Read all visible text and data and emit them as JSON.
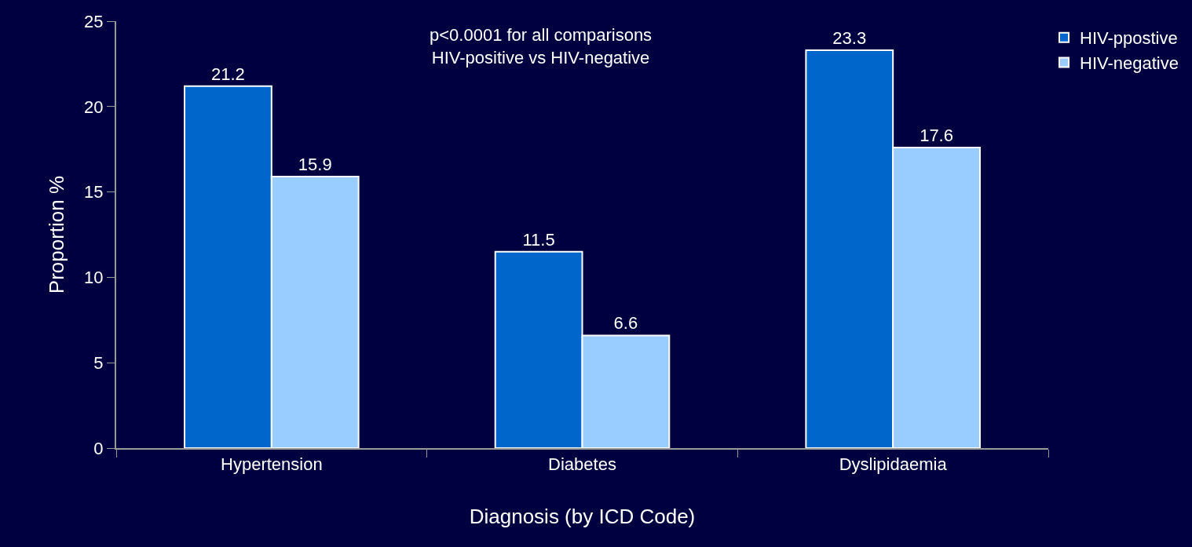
{
  "chart_data": {
    "type": "bar",
    "xlabel": "Diagnosis (by ICD Code)",
    "ylabel": "Proportion %",
    "categories": [
      "Hypertension",
      "Diabetes",
      "Dyslipidaemia"
    ],
    "series": [
      {
        "name": "HIV-ppostive",
        "color": "#0066cc",
        "values": [
          21.2,
          11.5,
          23.3
        ]
      },
      {
        "name": "HIV-negative",
        "color": "#99ccff",
        "values": [
          15.9,
          6.6,
          17.6
        ]
      }
    ],
    "ylim": [
      0,
      25
    ],
    "yticks": [
      0,
      5,
      10,
      15,
      20,
      25
    ],
    "grid": false,
    "legend": "top right",
    "data_labels": true,
    "annotations": [
      "p<0.0001 for all comparisons\nHIV-positive vs HIV-negative"
    ]
  }
}
